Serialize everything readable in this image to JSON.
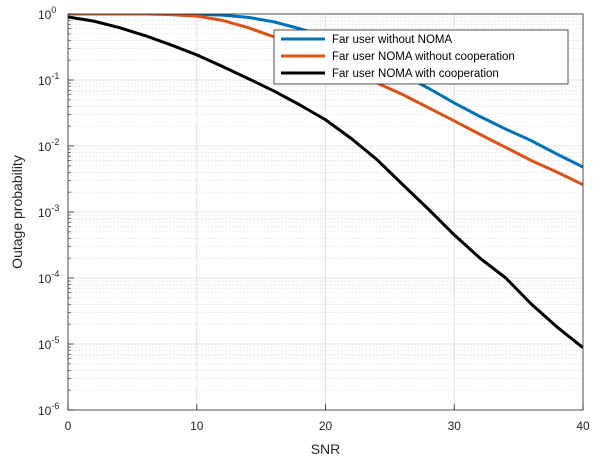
{
  "chart_data": {
    "type": "line",
    "xlabel": "SNR",
    "ylabel": "Outage probability",
    "xlim": [
      0,
      40
    ],
    "ylim": [
      1e-06,
      1
    ],
    "yscale": "log",
    "x_ticks": [
      0,
      10,
      20,
      30,
      40
    ],
    "x_tick_labels": [
      "0",
      "10",
      "20",
      "30",
      "40"
    ],
    "y_ticks": [
      {
        "value": 1,
        "base": "10",
        "exp": "0"
      },
      {
        "value": 0.1,
        "base": "10",
        "exp": "-1"
      },
      {
        "value": 0.01,
        "base": "10",
        "exp": "-2"
      },
      {
        "value": 0.001,
        "base": "10",
        "exp": "-3"
      },
      {
        "value": 0.0001,
        "base": "10",
        "exp": "-4"
      },
      {
        "value": 1e-05,
        "base": "10",
        "exp": "-5"
      },
      {
        "value": 1e-06,
        "base": "10",
        "exp": "-6"
      }
    ],
    "grid": true,
    "legend_position": "top-right",
    "series": [
      {
        "name": "Far user without NOMA",
        "color": "#0072BD",
        "x": [
          0,
          2,
          4,
          6,
          8,
          10,
          12,
          14,
          16,
          18,
          20,
          22,
          24,
          26,
          28,
          30,
          32,
          34,
          36,
          38,
          40
        ],
        "y": [
          1,
          1,
          1,
          1,
          0.999,
          0.99,
          0.96,
          0.89,
          0.76,
          0.6,
          0.45,
          0.3,
          0.19,
          0.12,
          0.075,
          0.045,
          0.028,
          0.018,
          0.012,
          0.0075,
          0.0048
        ]
      },
      {
        "name": "Far user NOMA without cooperation",
        "color": "#D95319",
        "x": [
          0,
          2,
          4,
          6,
          8,
          10,
          12,
          14,
          16,
          18,
          20,
          22,
          24,
          26,
          28,
          30,
          32,
          34,
          36,
          38,
          40
        ],
        "y": [
          1,
          1,
          1,
          1,
          0.98,
          0.93,
          0.8,
          0.62,
          0.45,
          0.3,
          0.2,
          0.13,
          0.09,
          0.06,
          0.038,
          0.024,
          0.015,
          0.0095,
          0.006,
          0.004,
          0.0026
        ]
      },
      {
        "name": "Far user NOMA with cooperation",
        "color": "#000000",
        "x": [
          0,
          2,
          4,
          6,
          8,
          10,
          12,
          14,
          16,
          18,
          20,
          22,
          24,
          26,
          28,
          30,
          32,
          34,
          36,
          38,
          40
        ],
        "y": [
          0.9,
          0.78,
          0.62,
          0.47,
          0.34,
          0.24,
          0.16,
          0.105,
          0.068,
          0.042,
          0.025,
          0.013,
          0.0062,
          0.0026,
          0.0011,
          0.00045,
          0.0002,
          0.0001,
          4e-05,
          1.8e-05,
          8.8e-06
        ]
      }
    ]
  }
}
